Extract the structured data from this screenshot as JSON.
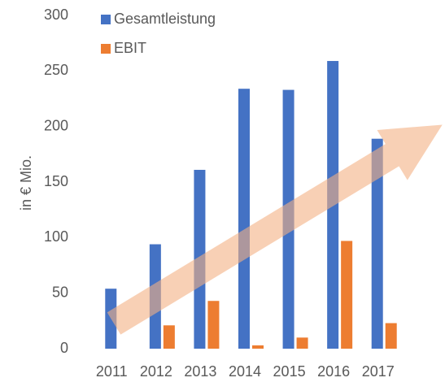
{
  "chart_data": {
    "type": "bar",
    "y_label": "in € Mio.",
    "categories": [
      "2011",
      "2012",
      "2013",
      "2014",
      "2015",
      "2016",
      "2017"
    ],
    "series": [
      {
        "name": "Gesamtleistung",
        "color": "#4472c4",
        "values": [
          54,
          94,
          161,
          234,
          233,
          259,
          189
        ]
      },
      {
        "name": "EBIT",
        "color": "#ed7d31",
        "values": [
          0,
          21,
          43,
          3,
          10,
          97,
          23
        ]
      }
    ],
    "ylim": [
      0,
      300
    ],
    "yticks": [
      0,
      50,
      100,
      150,
      200,
      250,
      300
    ],
    "grid": false,
    "legend": "top-left"
  }
}
